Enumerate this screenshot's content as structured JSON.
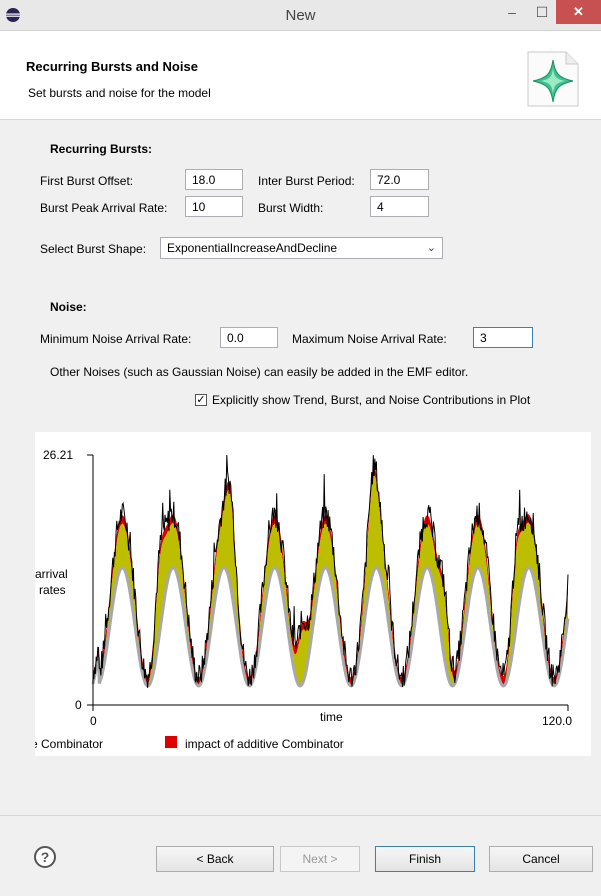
{
  "window": {
    "title": "New",
    "minimize": "–",
    "maximize": "☐",
    "close": "✕"
  },
  "header": {
    "title": "Recurring Bursts and Noise",
    "subtitle": "Set bursts and noise for the model"
  },
  "bursts": {
    "section_title": "Recurring Bursts:",
    "first_offset_label": "First Burst Offset:",
    "first_offset_value": "18.0",
    "inter_period_label": "Inter Burst Period:",
    "inter_period_value": "72.0",
    "peak_rate_label": "Burst Peak Arrival Rate:",
    "peak_rate_value": "10",
    "width_label": "Burst Width:",
    "width_value": "4",
    "shape_label": "Select Burst Shape:",
    "shape_value": "ExponentialIncreaseAndDecline",
    "shape_chevron": "⌄"
  },
  "noise": {
    "section_title": "Noise:",
    "min_label": "Minimum Noise Arrival Rate:",
    "min_value": "0.0",
    "max_label": "Maximum Noise Arrival Rate:",
    "max_value": "3",
    "info": "Other Noises (such as Gaussian Noise) can easily be added in the EMF editor.",
    "checkbox_label": "Explicitly show Trend, Burst, and Noise Contributions in Plot",
    "checkbox_mark": "✓",
    "checked": true
  },
  "chart_data": {
    "type": "area",
    "xlabel": "time",
    "ylabel": "arrival rates",
    "xlim": [
      0,
      120.0
    ],
    "ylim": [
      0,
      26.21
    ],
    "x_ticks": [
      "0",
      "120.0"
    ],
    "y_ticks": [
      "0",
      "26.21"
    ],
    "colors": {
      "trend": "#a8a8a8",
      "burst": "#bebe00",
      "noise": "#dd0000",
      "total": "#000000"
    },
    "legend": [
      {
        "label": "e Combinator",
        "color": "#ffffff"
      },
      {
        "label": "impact of additive Combinator",
        "color": "#dd0000"
      }
    ]
  },
  "footer": {
    "help": "?",
    "back": "< Back",
    "next": "Next >",
    "finish": "Finish",
    "cancel": "Cancel"
  }
}
